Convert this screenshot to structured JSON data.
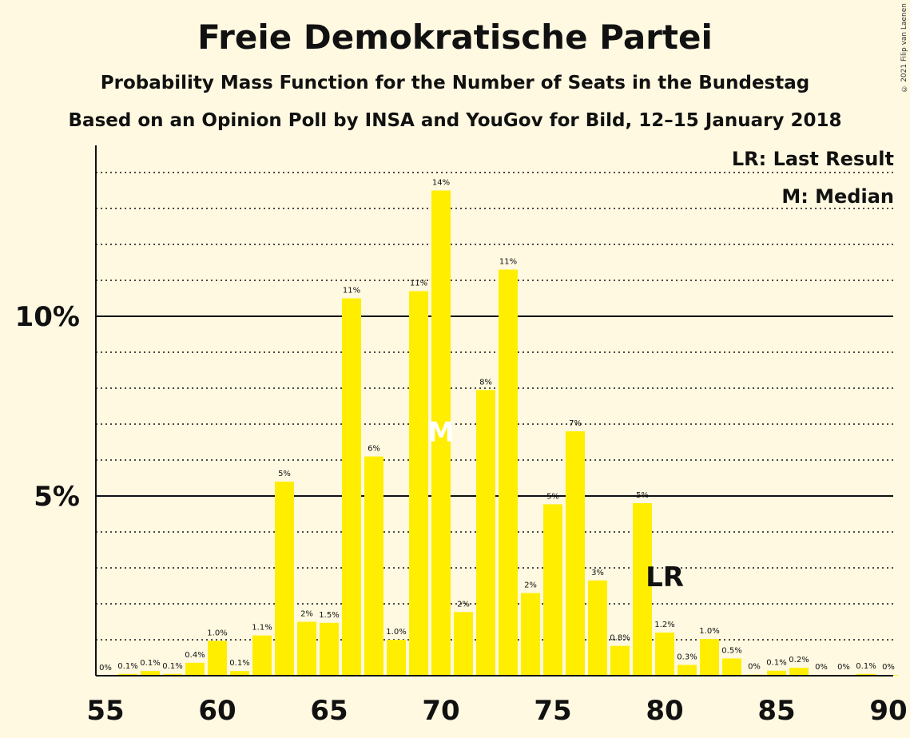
{
  "title": "Freie Demokratische Partei",
  "subtitle1": "Probability Mass Function for the Number of Seats in the Bundestag",
  "subtitle2": "Based on an Opinion Poll by INSA and YouGov for Bild, 12–15 January 2018",
  "copyright": "© 2021 Filip van Laenen",
  "legend": {
    "last_result": "LR: Last Result",
    "median": "M: Median"
  },
  "colors": {
    "bar": "#FFEE00",
    "background": "#FFF9E1",
    "text": "#111111"
  },
  "chart_data": {
    "type": "bar",
    "title": "Freie Demokratische Partei",
    "x": [
      55,
      56,
      57,
      58,
      59,
      60,
      61,
      62,
      63,
      64,
      65,
      66,
      67,
      68,
      69,
      70,
      71,
      72,
      73,
      74,
      75,
      76,
      77,
      78,
      79,
      80,
      81,
      82,
      83,
      84,
      85,
      86,
      87,
      88,
      89,
      90
    ],
    "values": [
      0,
      0.05,
      0.13,
      0.05,
      0.36,
      0.97,
      0.13,
      1.12,
      5.4,
      1.5,
      1.47,
      10.5,
      6.1,
      1.0,
      10.7,
      13.5,
      1.77,
      7.95,
      11.3,
      2.3,
      4.77,
      6.8,
      2.65,
      0.83,
      4.8,
      1.2,
      0.3,
      1.02,
      0.48,
      0.03,
      0.14,
      0.22,
      0.02,
      0.02,
      0.05,
      0.02
    ],
    "labels": [
      "0%",
      "0.1%",
      "0.1%",
      "0.1%",
      "0.4%",
      "1.0%",
      "0.1%",
      "1.1%",
      "5%",
      "2%",
      "1.5%",
      "11%",
      "6%",
      "1.0%",
      "11%",
      "14%",
      "2%",
      "8%",
      "11%",
      "2%",
      "5%",
      "7%",
      "3%",
      "0.8%",
      "5%",
      "1.2%",
      "0.3%",
      "1.0%",
      "0.5%",
      "0%",
      "0.1%",
      "0.2%",
      "0%",
      "0%",
      "0.1%",
      "0%"
    ],
    "x_ticks": [
      "55",
      "60",
      "65",
      "70",
      "75",
      "80",
      "85",
      "90"
    ],
    "y_ticks": [
      {
        "value": 5,
        "label": "5%"
      },
      {
        "value": 10,
        "label": "10%"
      }
    ],
    "ylim": [
      0,
      14.8
    ],
    "grid": true,
    "median": 70,
    "median_marker": "M",
    "last_result": 80,
    "last_result_marker": "LR",
    "legend_position": "top-right"
  }
}
